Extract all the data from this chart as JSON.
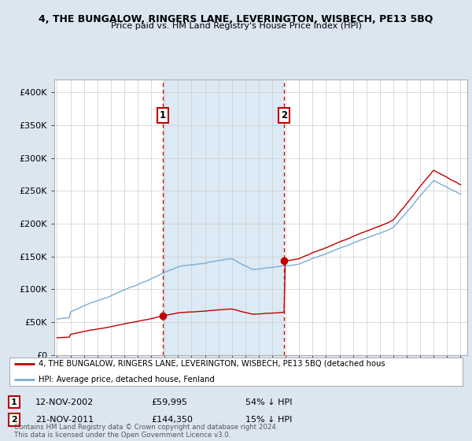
{
  "title": "4, THE BUNGALOW, RINGERS LANE, LEVERINGTON, WISBECH, PE13 5BQ",
  "subtitle": "Price paid vs. HM Land Registry's House Price Index (HPI)",
  "legend_line1": "4, THE BUNGALOW, RINGERS LANE, LEVERINGTON, WISBECH, PE13 5BQ (detached hous",
  "legend_line2": "HPI: Average price, detached house, Fenland",
  "footnote": "Contains HM Land Registry data © Crown copyright and database right 2024.\nThis data is licensed under the Open Government Licence v3.0.",
  "purchase1_date": 2002.87,
  "purchase1_label": "12-NOV-2002",
  "purchase1_price": 59995,
  "purchase1_text": "£59,995",
  "purchase1_pct": "54% ↓ HPI",
  "purchase2_date": 2011.89,
  "purchase2_label": "21-NOV-2011",
  "purchase2_price": 144350,
  "purchase2_text": "£144,350",
  "purchase2_pct": "15% ↓ HPI",
  "hpi_color": "#7aadd4",
  "price_color": "#c00000",
  "vline_color": "#c00000",
  "shade_color": "#dceaf5",
  "background_color": "#dce6f1",
  "plot_bg_color": "#ffffff",
  "ylim_min": 0,
  "ylim_max": 420000,
  "xlabel_start": 1995,
  "xlabel_end": 2025
}
